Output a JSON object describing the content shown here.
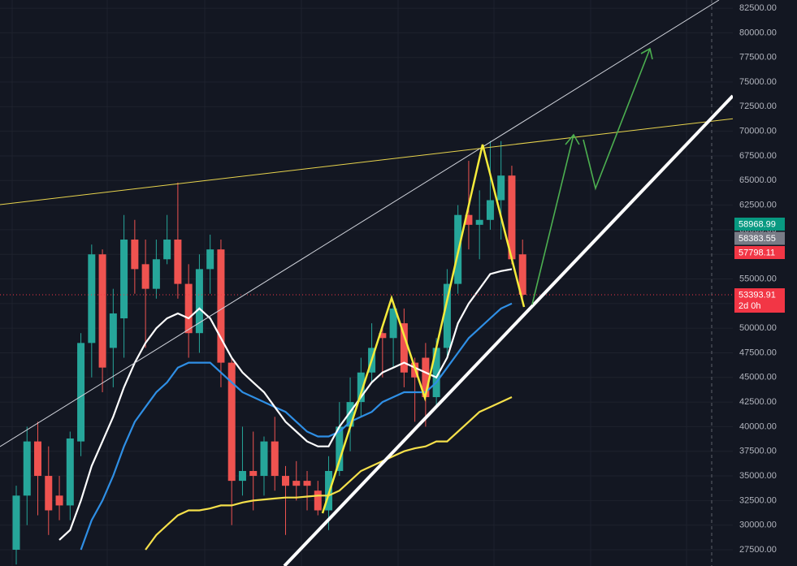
{
  "chart_data": {
    "type": "candlestick",
    "ylim": [
      25850,
      83330
    ],
    "yticks": [
      {
        "value": 27500,
        "label": "27500.00"
      },
      {
        "value": 30000,
        "label": "30000.00"
      },
      {
        "value": 32500,
        "label": "32500.00"
      },
      {
        "value": 35000,
        "label": "35000.00"
      },
      {
        "value": 37500,
        "label": "37500.00"
      },
      {
        "value": 40000,
        "label": "40000.00"
      },
      {
        "value": 42500,
        "label": "42500.00"
      },
      {
        "value": 45000,
        "label": "45000.00"
      },
      {
        "value": 47500,
        "label": "47500.00"
      },
      {
        "value": 50000,
        "label": "50000.00"
      },
      {
        "value": 52500,
        "label": "52500.00"
      },
      {
        "value": 55000,
        "label": "55000.00"
      },
      {
        "value": 57500,
        "label": "57500.00"
      },
      {
        "value": 60000,
        "label": "60000.00"
      },
      {
        "value": 62500,
        "label": "62500.00"
      },
      {
        "value": 65000,
        "label": "65000.00"
      },
      {
        "value": 67500,
        "label": "67500.00"
      },
      {
        "value": 70000,
        "label": "70000.00"
      },
      {
        "value": 72500,
        "label": "72500.00"
      },
      {
        "value": 75000,
        "label": "75000.00"
      },
      {
        "value": 77500,
        "label": "77500.00"
      },
      {
        "value": 80000,
        "label": "80000.00"
      },
      {
        "value": 82500,
        "label": "82500.00"
      }
    ],
    "grid": true,
    "up_color": "#26a69a",
    "down_color": "#ef5350",
    "open": [
      27500,
      33000,
      38500,
      35000,
      33000,
      32000,
      38500,
      48500,
      57500,
      48000,
      51000,
      59000,
      56500,
      54000,
      57000,
      59000,
      54500,
      49500,
      56000,
      58000,
      46500,
      34500,
      35500,
      35000,
      38500,
      35000,
      34500,
      34500,
      33500,
      31500,
      35500,
      40000,
      42500,
      45500,
      49500,
      49000,
      50500,
      46500,
      47000,
      43000,
      48000,
      54500,
      61500,
      60500,
      61000,
      63000,
      65500,
      57500
    ],
    "high": [
      34000,
      40000,
      40500,
      38000,
      35000,
      39500,
      49500,
      58500,
      58000,
      54000,
      61500,
      61000,
      59000,
      59000,
      61500,
      64800,
      56500,
      57500,
      59500,
      59000,
      47000,
      40000,
      39500,
      39000,
      41000,
      36000,
      36500,
      35500,
      34500,
      37000,
      42500,
      45000,
      47000,
      50500,
      50000,
      52500,
      52000,
      47000,
      48500,
      49000,
      56000,
      62500,
      67000,
      64000,
      69000,
      69000,
      66500,
      59000
    ],
    "low": [
      26000,
      30000,
      31000,
      29000,
      30500,
      30500,
      37000,
      45000,
      43500,
      44000,
      47000,
      53500,
      48000,
      53000,
      56500,
      53000,
      47000,
      47500,
      53500,
      44000,
      30000,
      33000,
      31500,
      33000,
      33500,
      29000,
      32500,
      31500,
      31000,
      29500,
      35000,
      37500,
      41000,
      44500,
      45000,
      46000,
      44000,
      40500,
      40000,
      42000,
      47000,
      53500,
      58000,
      57000,
      60000,
      59000,
      56500,
      52500
    ],
    "close": [
      33000,
      38500,
      35000,
      31500,
      32000,
      38800,
      48500,
      57500,
      46000,
      51500,
      59000,
      56000,
      54000,
      57000,
      59000,
      54500,
      49500,
      56000,
      58000,
      46500,
      34500,
      35500,
      35000,
      38500,
      35000,
      34000,
      34000,
      34000,
      31500,
      35500,
      40000,
      42500,
      45500,
      48000,
      49000,
      52000,
      45500,
      45000,
      43000,
      48000,
      54500,
      61500,
      60500,
      61000,
      63000,
      65500,
      57000,
      53393.91
    ],
    "series": [
      {
        "color": "#2f8fe5",
        "values": [
          null,
          null,
          null,
          null,
          null,
          null,
          27500,
          30500,
          32500,
          35000,
          38000,
          40500,
          42000,
          43500,
          44500,
          46000,
          46500,
          46500,
          46500,
          45500,
          44500,
          43500,
          43000,
          42500,
          42000,
          41500,
          40500,
          39500,
          39000,
          39000,
          39500,
          40500,
          41000,
          41500,
          42500,
          43000,
          43500,
          43500,
          43500,
          44500,
          46000,
          47500,
          49000,
          50000,
          51000,
          52000,
          52500,
          null
        ]
      },
      {
        "color": "#ffffff",
        "values": [
          null,
          null,
          null,
          null,
          28500,
          29500,
          32500,
          36000,
          38500,
          41000,
          44000,
          46500,
          48500,
          50000,
          51000,
          51500,
          51000,
          52000,
          51000,
          49000,
          47000,
          45500,
          44500,
          43500,
          42000,
          40500,
          39500,
          38500,
          38000,
          38000,
          40000,
          41500,
          43000,
          44500,
          45500,
          46000,
          46500,
          46000,
          45500,
          45000,
          47000,
          50500,
          52500,
          54000,
          55500,
          55800,
          56000,
          null
        ]
      },
      {
        "color": "#f5e04a",
        "values": [
          null,
          null,
          null,
          null,
          null,
          null,
          null,
          null,
          null,
          null,
          null,
          null,
          27500,
          29000,
          30000,
          31000,
          31500,
          31500,
          31700,
          32000,
          32000,
          32300,
          32500,
          32600,
          32700,
          32800,
          32800,
          32900,
          33000,
          33000,
          33500,
          34500,
          35500,
          36000,
          36500,
          37000,
          37500,
          37800,
          38000,
          38500,
          38500,
          39500,
          40500,
          41500,
          42000,
          42500,
          43000,
          null
        ]
      }
    ],
    "price_tags": [
      {
        "value": 58968.99,
        "color": "#089981"
      },
      {
        "value": 58383.55,
        "color": "#787b86"
      },
      {
        "value": 57798.11,
        "color": "#f23645"
      }
    ],
    "last_price": 53393.91,
    "last_color": "#f23645",
    "countdown": "2d 0h"
  }
}
